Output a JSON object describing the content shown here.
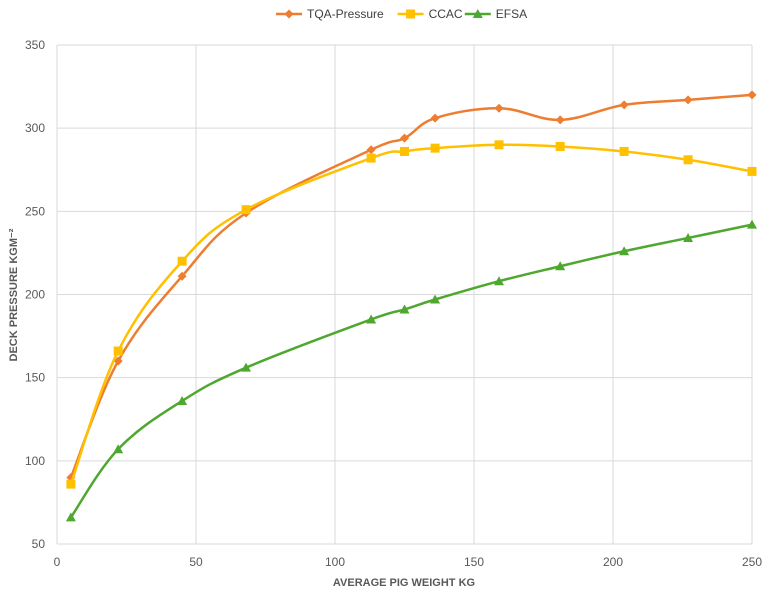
{
  "chart_data": {
    "type": "line",
    "xlabel": "AVERAGE PIG WEIGHT KG",
    "ylabel": "DECK PRESSURE KGM⁻²",
    "xlim": [
      0,
      250
    ],
    "ylim": [
      50,
      350
    ],
    "xticks": [
      0,
      50,
      100,
      150,
      200,
      250
    ],
    "yticks": [
      50,
      100,
      150,
      200,
      250,
      300,
      350
    ],
    "grid": true,
    "legend_position": "top-center",
    "series": [
      {
        "name": "TQA-Pressure",
        "color": "#ED7D31",
        "marker": "diamond",
        "x": [
          5,
          22,
          45,
          68,
          113,
          125,
          136,
          159,
          181,
          204,
          227,
          250
        ],
        "y": [
          90,
          160,
          211,
          249,
          287,
          294,
          306,
          312,
          305,
          314,
          317,
          320
        ]
      },
      {
        "name": "CCAC",
        "color": "#FFC000",
        "marker": "square",
        "x": [
          5,
          22,
          45,
          68,
          113,
          125,
          136,
          159,
          181,
          204,
          227,
          250
        ],
        "y": [
          86,
          166,
          220,
          251,
          282,
          286,
          288,
          290,
          289,
          286,
          281,
          274
        ]
      },
      {
        "name": "EFSA",
        "color": "#4EA72E",
        "marker": "triangle",
        "x": [
          5,
          22,
          45,
          68,
          113,
          125,
          136,
          159,
          181,
          204,
          227,
          250
        ],
        "y": [
          66,
          107,
          136,
          156,
          185,
          191,
          197,
          208,
          217,
          226,
          234,
          242
        ]
      }
    ]
  }
}
